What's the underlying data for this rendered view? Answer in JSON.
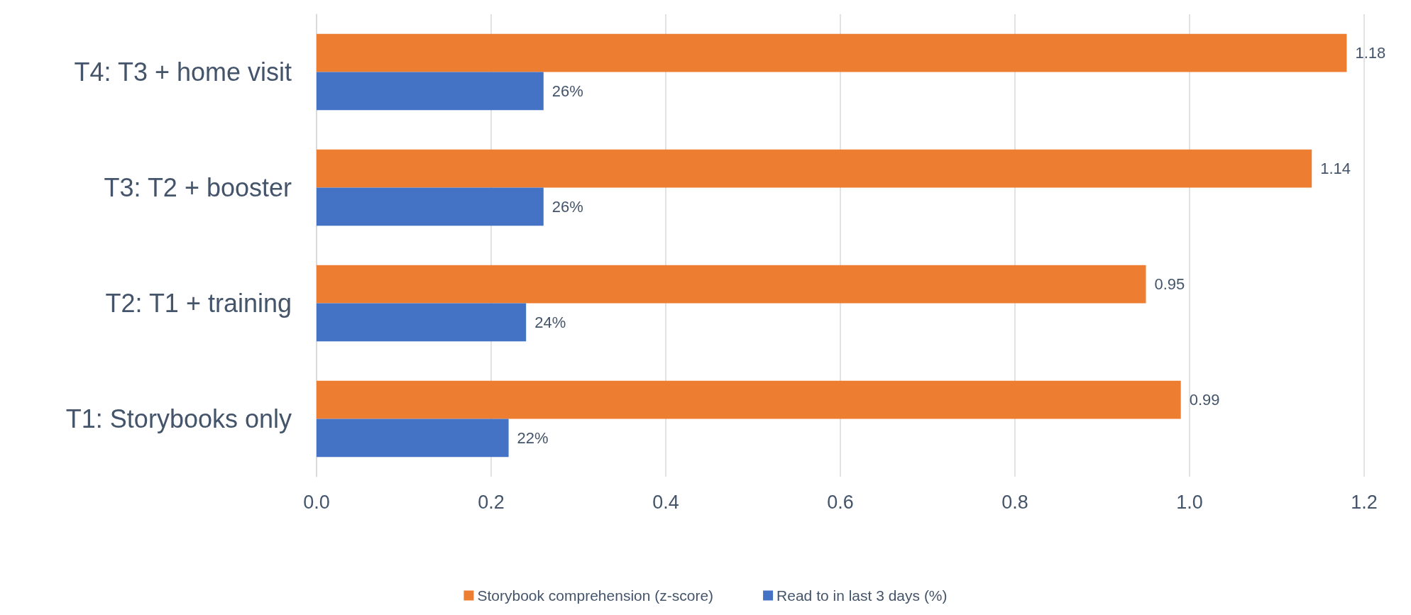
{
  "chart_data": {
    "type": "bar",
    "orientation": "horizontal",
    "categories": [
      "T4: T3 + home visit",
      "T3: T2 + booster",
      "T2: T1 + training",
      "T1: Storybooks only"
    ],
    "series": [
      {
        "name": "Storybook comprehension (z-score)",
        "color": "#ed7d31",
        "values": [
          1.18,
          1.14,
          0.95,
          0.99
        ],
        "value_labels": [
          "1.18",
          "1.14",
          "0.95",
          "0.99"
        ]
      },
      {
        "name": "Read to in last 3 days (%)",
        "color": "#4472c4",
        "values": [
          0.26,
          0.26,
          0.24,
          0.22
        ],
        "value_labels": [
          "26%",
          "26%",
          "24%",
          "22%"
        ]
      }
    ],
    "xlim": [
      0,
      1.2
    ],
    "xticks": [
      {
        "value": 0,
        "label": "0.0"
      },
      {
        "value": 0.2,
        "label": "0.2"
      },
      {
        "value": 0.4,
        "label": "0.4"
      },
      {
        "value": 0.6,
        "label": "0.6"
      },
      {
        "value": 0.8,
        "label": "0.8"
      },
      {
        "value": 1,
        "label": "1.0"
      },
      {
        "value": 1.2,
        "label": "1.2"
      }
    ],
    "grid": "x",
    "legend": "bottom"
  }
}
